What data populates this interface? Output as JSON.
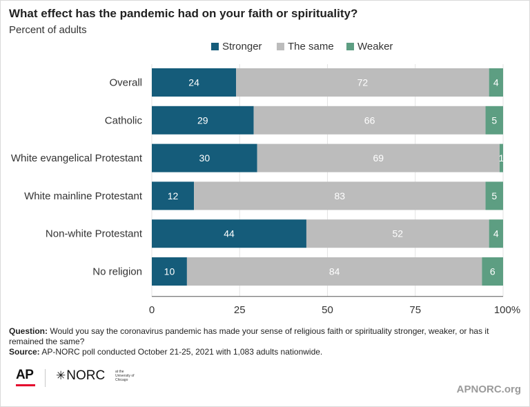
{
  "title": "What effect has the pandemic had on your faith or spirituality?",
  "subtitle": "Percent of adults",
  "legend": [
    {
      "label": "Stronger",
      "color": "#155c7a"
    },
    {
      "label": "The same",
      "color": "#bcbcbc"
    },
    {
      "label": "Weaker",
      "color": "#5d9e82"
    }
  ],
  "chart_data": {
    "type": "bar",
    "orientation": "horizontal",
    "stacked": true,
    "categories": [
      "Overall",
      "Catholic",
      "White evangelical Protestant",
      "White mainline Protestant",
      "Non-white Protestant",
      "No religion"
    ],
    "series": [
      {
        "name": "Stronger",
        "values": [
          24,
          29,
          30,
          12,
          44,
          10
        ],
        "color": "#155c7a"
      },
      {
        "name": "The same",
        "values": [
          72,
          66,
          69,
          83,
          52,
          84
        ],
        "color": "#bcbcbc"
      },
      {
        "name": "Weaker",
        "values": [
          4,
          5,
          1,
          5,
          4,
          6
        ],
        "color": "#5d9e82"
      }
    ],
    "xlim": [
      0,
      100
    ],
    "xticks": [
      "0",
      "25",
      "50",
      "75",
      "100%"
    ],
    "tick_values": [
      0,
      25,
      50,
      75,
      100
    ],
    "grid": true,
    "legend_position": "top"
  },
  "footnote": {
    "question_label": "Question:",
    "question_text": " Would you say the coronavirus pandemic has made your sense of religious faith or spirituality stronger, weaker, or has it remained the same?",
    "source_label": "Source:",
    "source_text": " AP-NORC poll conducted October 21-25, 2021 with 1,083 adults nationwide."
  },
  "logos": {
    "ap": "AP",
    "norc": "NORC",
    "norc_sub": "at the University of Chicago"
  },
  "site": "APNORC.org"
}
